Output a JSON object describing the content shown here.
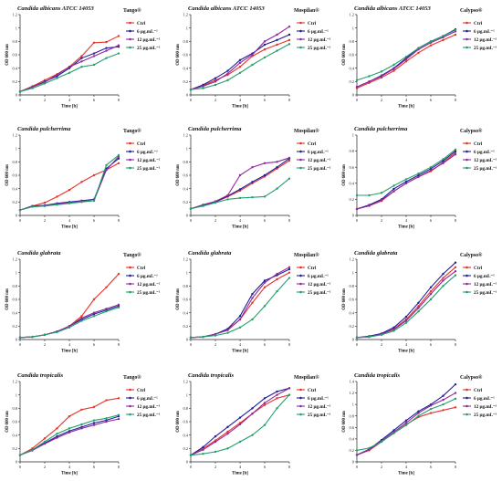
{
  "figure": {
    "x_unit_label": "Time [h]",
    "y_unit_label": "OD 600 nm",
    "legend_labels": [
      "Ctrl",
      "6 µg.mL⁻¹",
      "12 µg.mL⁻¹",
      "25 µg.mL⁻¹"
    ]
  },
  "colors": {
    "ctrl": "#e8332a",
    "c6": "#1f1f9e",
    "c12": "#8e2a9c",
    "c25": "#22a06a"
  },
  "chart_data": [
    {
      "type": "line",
      "title": "Candida albicans ATCC 14053",
      "product": "Tango®",
      "xlabel": "Time [h]",
      "ylabel": "OD 600 nm",
      "xlim": [
        0,
        8
      ],
      "ylim": [
        0,
        1.2
      ],
      "x": [
        0,
        1,
        2,
        3,
        4,
        5,
        6,
        7,
        8
      ],
      "series": [
        {
          "name": "Ctrl",
          "values": [
            0.05,
            0.13,
            0.22,
            0.31,
            0.42,
            0.58,
            0.78,
            0.79,
            0.88
          ]
        },
        {
          "name": "6 µg.mL⁻¹",
          "values": [
            0.05,
            0.12,
            0.2,
            0.28,
            0.4,
            0.55,
            0.62,
            0.7,
            0.72
          ]
        },
        {
          "name": "12 µg.mL⁻¹",
          "values": [
            0.05,
            0.12,
            0.19,
            0.3,
            0.42,
            0.5,
            0.58,
            0.66,
            0.74
          ]
        },
        {
          "name": "25 µg.mL⁻¹",
          "values": [
            0.05,
            0.1,
            0.17,
            0.25,
            0.33,
            0.42,
            0.45,
            0.55,
            0.62
          ]
        }
      ]
    },
    {
      "type": "line",
      "title": "Candida albicans ATCC 14053",
      "product": "Mospilan®",
      "xlabel": "Time [h]",
      "ylabel": "OD 600 nm",
      "xlim": [
        0,
        8
      ],
      "ylim": [
        0,
        1.2
      ],
      "x": [
        0,
        1,
        2,
        3,
        4,
        5,
        6,
        7,
        8
      ],
      "series": [
        {
          "name": "Ctrl",
          "values": [
            0.08,
            0.14,
            0.22,
            0.3,
            0.42,
            0.58,
            0.68,
            0.75,
            0.82
          ]
        },
        {
          "name": "6 µg.mL⁻¹",
          "values": [
            0.08,
            0.15,
            0.25,
            0.36,
            0.52,
            0.62,
            0.75,
            0.82,
            0.9
          ]
        },
        {
          "name": "12 µg.mL⁻¹",
          "values": [
            0.08,
            0.13,
            0.2,
            0.32,
            0.48,
            0.6,
            0.8,
            0.9,
            1.02
          ]
        },
        {
          "name": "25 µg.mL⁻¹",
          "values": [
            0.08,
            0.1,
            0.15,
            0.22,
            0.33,
            0.45,
            0.56,
            0.66,
            0.76
          ]
        }
      ]
    },
    {
      "type": "line",
      "title": "Candida albicans ATCC 14053",
      "product": "Calypso®",
      "xlabel": "Time [h]",
      "ylabel": "OD 600 nm",
      "xlim": [
        0,
        8
      ],
      "ylim": [
        0,
        1.2
      ],
      "x": [
        0,
        1,
        2,
        3,
        4,
        5,
        6,
        7,
        8
      ],
      "series": [
        {
          "name": "Ctrl",
          "values": [
            0.1,
            0.18,
            0.26,
            0.36,
            0.5,
            0.63,
            0.74,
            0.82,
            0.9
          ]
        },
        {
          "name": "6 µg.mL⁻¹",
          "values": [
            0.12,
            0.2,
            0.29,
            0.4,
            0.55,
            0.7,
            0.8,
            0.88,
            0.98
          ]
        },
        {
          "name": "12 µg.mL⁻¹",
          "values": [
            0.12,
            0.2,
            0.28,
            0.39,
            0.53,
            0.68,
            0.78,
            0.86,
            0.95
          ]
        },
        {
          "name": "25 µg.mL⁻¹",
          "values": [
            0.22,
            0.28,
            0.35,
            0.45,
            0.57,
            0.7,
            0.8,
            0.88,
            0.97
          ]
        }
      ]
    },
    {
      "type": "line",
      "title": "Candida pulcherrima",
      "product": "Tango®",
      "xlabel": "Time [h]",
      "ylabel": "OD 600 nm",
      "xlim": [
        0,
        8
      ],
      "ylim": [
        0,
        1.2
      ],
      "x": [
        0,
        1,
        2,
        3,
        4,
        5,
        6,
        7,
        8
      ],
      "series": [
        {
          "name": "Ctrl",
          "values": [
            0.08,
            0.14,
            0.19,
            0.28,
            0.38,
            0.5,
            0.6,
            0.68,
            0.78
          ]
        },
        {
          "name": "6 µg.mL⁻¹",
          "values": [
            0.08,
            0.14,
            0.15,
            0.18,
            0.2,
            0.22,
            0.24,
            0.7,
            0.85
          ]
        },
        {
          "name": "12 µg.mL⁻¹",
          "values": [
            0.08,
            0.13,
            0.14,
            0.17,
            0.19,
            0.21,
            0.22,
            0.68,
            0.88
          ]
        },
        {
          "name": "25 µg.mL⁻¹",
          "values": [
            0.08,
            0.13,
            0.14,
            0.16,
            0.18,
            0.2,
            0.22,
            0.75,
            0.9
          ]
        }
      ]
    },
    {
      "type": "line",
      "title": "Candida pulcherrima",
      "product": "Mospilan®",
      "xlabel": "Time [h]",
      "ylabel": "OD 600 nm",
      "xlim": [
        0,
        8
      ],
      "ylim": [
        0,
        1.2
      ],
      "x": [
        0,
        1,
        2,
        3,
        4,
        5,
        6,
        7,
        8
      ],
      "series": [
        {
          "name": "Ctrl",
          "values": [
            0.1,
            0.15,
            0.2,
            0.28,
            0.37,
            0.48,
            0.58,
            0.7,
            0.82
          ]
        },
        {
          "name": "6 µg.mL⁻¹",
          "values": [
            0.1,
            0.15,
            0.2,
            0.29,
            0.39,
            0.5,
            0.6,
            0.72,
            0.85
          ]
        },
        {
          "name": "12 µg.mL⁻¹",
          "values": [
            0.1,
            0.16,
            0.21,
            0.3,
            0.6,
            0.72,
            0.78,
            0.8,
            0.86
          ]
        },
        {
          "name": "25 µg.mL⁻¹",
          "values": [
            0.1,
            0.14,
            0.19,
            0.24,
            0.26,
            0.27,
            0.28,
            0.4,
            0.55
          ]
        }
      ]
    },
    {
      "type": "line",
      "title": "Candida pulcherrima",
      "product": "Calypso®",
      "xlabel": "Time [h]",
      "ylabel": "OD 600 nm",
      "xlim": [
        0,
        8
      ],
      "ylim": [
        0,
        1.0
      ],
      "x": [
        0,
        1,
        2,
        3,
        4,
        5,
        6,
        7,
        8
      ],
      "series": [
        {
          "name": "Ctrl",
          "values": [
            0.08,
            0.12,
            0.18,
            0.3,
            0.4,
            0.48,
            0.55,
            0.66,
            0.78
          ]
        },
        {
          "name": "6 µg.mL⁻¹",
          "values": [
            0.08,
            0.13,
            0.2,
            0.33,
            0.42,
            0.5,
            0.58,
            0.68,
            0.8
          ]
        },
        {
          "name": "12 µg.mL⁻¹",
          "values": [
            0.08,
            0.12,
            0.19,
            0.3,
            0.4,
            0.48,
            0.56,
            0.65,
            0.76
          ]
        },
        {
          "name": "25 µg.mL⁻¹",
          "values": [
            0.25,
            0.25,
            0.28,
            0.37,
            0.45,
            0.52,
            0.6,
            0.7,
            0.82
          ]
        }
      ]
    },
    {
      "type": "line",
      "title": "Candida glabrata",
      "product": "Tango®",
      "xlabel": "Time [h]",
      "ylabel": "OD 600 nm",
      "xlim": [
        0,
        8
      ],
      "ylim": [
        0,
        1.2
      ],
      "x": [
        0,
        1,
        2,
        3,
        4,
        5,
        6,
        7,
        8
      ],
      "series": [
        {
          "name": "Ctrl",
          "values": [
            0.03,
            0.04,
            0.07,
            0.12,
            0.2,
            0.35,
            0.6,
            0.78,
            0.98
          ]
        },
        {
          "name": "6 µg.mL⁻¹",
          "values": [
            0.03,
            0.04,
            0.07,
            0.12,
            0.2,
            0.3,
            0.38,
            0.44,
            0.5
          ]
        },
        {
          "name": "12 µg.mL⁻¹",
          "values": [
            0.03,
            0.04,
            0.07,
            0.12,
            0.2,
            0.32,
            0.4,
            0.46,
            0.52
          ]
        },
        {
          "name": "25 µg.mL⁻¹",
          "values": [
            0.03,
            0.04,
            0.07,
            0.11,
            0.18,
            0.28,
            0.35,
            0.42,
            0.48
          ]
        }
      ]
    },
    {
      "type": "line",
      "title": "Candida glabrata",
      "product": "Mospilan®",
      "xlabel": "Time [h]",
      "ylabel": "OD 600 nm",
      "xlim": [
        0,
        8
      ],
      "ylim": [
        0,
        1.2
      ],
      "x": [
        0,
        1,
        2,
        3,
        4,
        5,
        6,
        7,
        8
      ],
      "series": [
        {
          "name": "Ctrl",
          "values": [
            0.03,
            0.04,
            0.08,
            0.15,
            0.3,
            0.55,
            0.78,
            0.9,
            1.0
          ]
        },
        {
          "name": "6 µg.mL⁻¹",
          "values": [
            0.03,
            0.04,
            0.08,
            0.16,
            0.35,
            0.68,
            0.88,
            0.96,
            1.05
          ]
        },
        {
          "name": "12 µg.mL⁻¹",
          "values": [
            0.03,
            0.04,
            0.08,
            0.14,
            0.3,
            0.62,
            0.85,
            0.98,
            1.08
          ]
        },
        {
          "name": "25 µg.mL⁻¹",
          "values": [
            0.03,
            0.04,
            0.06,
            0.1,
            0.18,
            0.3,
            0.5,
            0.72,
            0.92
          ]
        }
      ]
    },
    {
      "type": "line",
      "title": "Candida glabrata",
      "product": "Calypso®",
      "xlabel": "Time [h]",
      "ylabel": "OD 600 nm",
      "xlim": [
        0,
        8
      ],
      "ylim": [
        0,
        1.2
      ],
      "x": [
        0,
        1,
        2,
        3,
        4,
        5,
        6,
        7,
        8
      ],
      "series": [
        {
          "name": "Ctrl",
          "values": [
            0.03,
            0.04,
            0.08,
            0.16,
            0.3,
            0.5,
            0.72,
            0.92,
            1.08
          ]
        },
        {
          "name": "6 µg.mL⁻¹",
          "values": [
            0.03,
            0.05,
            0.09,
            0.18,
            0.34,
            0.55,
            0.78,
            0.98,
            1.15
          ]
        },
        {
          "name": "12 µg.mL⁻¹",
          "values": [
            0.03,
            0.04,
            0.08,
            0.15,
            0.28,
            0.47,
            0.68,
            0.88,
            1.02
          ]
        },
        {
          "name": "25 µg.mL⁻¹",
          "values": [
            0.03,
            0.04,
            0.07,
            0.13,
            0.25,
            0.42,
            0.6,
            0.8,
            0.96
          ]
        }
      ]
    },
    {
      "type": "line",
      "title": "Candida tropicalis",
      "product": "Tango®",
      "xlabel": "Time [h]",
      "ylabel": "OD 600 nm",
      "xlim": [
        0,
        8
      ],
      "ylim": [
        0,
        1.2
      ],
      "x": [
        0,
        1,
        2,
        3,
        4,
        5,
        6,
        7,
        8
      ],
      "series": [
        {
          "name": "Ctrl",
          "values": [
            0.1,
            0.2,
            0.35,
            0.5,
            0.68,
            0.78,
            0.82,
            0.92,
            0.95
          ]
        },
        {
          "name": "6 µg.mL⁻¹",
          "values": [
            0.1,
            0.18,
            0.28,
            0.38,
            0.46,
            0.52,
            0.58,
            0.62,
            0.68
          ]
        },
        {
          "name": "12 µg.mL⁻¹",
          "values": [
            0.1,
            0.17,
            0.27,
            0.36,
            0.44,
            0.5,
            0.55,
            0.6,
            0.64
          ]
        },
        {
          "name": "25 µg.mL⁻¹",
          "values": [
            0.1,
            0.18,
            0.3,
            0.42,
            0.5,
            0.56,
            0.62,
            0.65,
            0.7
          ]
        }
      ]
    },
    {
      "type": "line",
      "title": "Candida tropicalis",
      "product": "Mospilan®",
      "xlabel": "Time [h]",
      "ylabel": "OD 600 nm",
      "xlim": [
        0,
        8
      ],
      "ylim": [
        0,
        1.2
      ],
      "x": [
        0,
        1,
        2,
        3,
        4,
        5,
        6,
        7,
        8
      ],
      "series": [
        {
          "name": "Ctrl",
          "values": [
            0.1,
            0.2,
            0.32,
            0.45,
            0.58,
            0.72,
            0.85,
            0.95,
            1.0
          ]
        },
        {
          "name": "6 µg.mL⁻¹",
          "values": [
            0.1,
            0.22,
            0.38,
            0.52,
            0.66,
            0.8,
            0.95,
            1.05,
            1.1
          ]
        },
        {
          "name": "12 µg.mL⁻¹",
          "values": [
            0.1,
            0.18,
            0.3,
            0.42,
            0.56,
            0.72,
            0.88,
            1.0,
            1.1
          ]
        },
        {
          "name": "25 µg.mL⁻¹",
          "values": [
            0.1,
            0.12,
            0.15,
            0.2,
            0.3,
            0.4,
            0.55,
            0.8,
            1.0
          ]
        }
      ]
    },
    {
      "type": "line",
      "title": "Candida tropicalis",
      "product": "Calypso®",
      "xlabel": "Time [h]",
      "ylabel": "OD 600 nm",
      "xlim": [
        0,
        8
      ],
      "ylim": [
        0,
        1.4
      ],
      "x": [
        0,
        1,
        2,
        3,
        4,
        5,
        6,
        7,
        8
      ],
      "series": [
        {
          "name": "Ctrl",
          "values": [
            0.12,
            0.2,
            0.35,
            0.5,
            0.65,
            0.78,
            0.85,
            0.9,
            0.95
          ]
        },
        {
          "name": "6 µg.mL⁻¹",
          "values": [
            0.12,
            0.22,
            0.38,
            0.55,
            0.72,
            0.88,
            1.0,
            1.15,
            1.35
          ]
        },
        {
          "name": "12 µg.mL⁻¹",
          "values": [
            0.12,
            0.21,
            0.36,
            0.52,
            0.68,
            0.85,
            0.98,
            1.08,
            1.2
          ]
        },
        {
          "name": "25 µg.mL⁻¹",
          "values": [
            0.2,
            0.24,
            0.35,
            0.5,
            0.64,
            0.8,
            0.92,
            1.0,
            1.1
          ]
        }
      ]
    }
  ]
}
